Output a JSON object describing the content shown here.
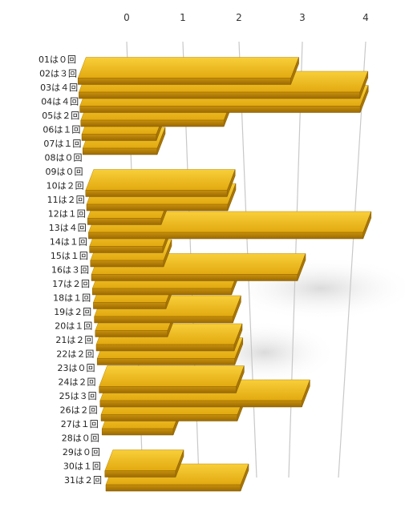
{
  "chart_data": {
    "type": "bar",
    "orientation": "horizontal",
    "style": "3d",
    "title": "",
    "xlabel": "",
    "ylabel": "",
    "xlim": [
      0,
      4
    ],
    "x_ticks": [
      "0",
      "1",
      "2",
      "3",
      "4"
    ],
    "grid": true,
    "bar_color": "#E8B010",
    "categories": [
      "01は０回",
      "02は３回",
      "03は４回",
      "04は４回",
      "05は２回",
      "06は１回",
      "07は１回",
      "08は０回",
      "09は０回",
      "10は２回",
      "11は２回",
      "12は１回",
      "13は４回",
      "14は１回",
      "15は１回",
      "16は３回",
      "17は２回",
      "18は１回",
      "19は２回",
      "20は１回",
      "21は２回",
      "22は２回",
      "23は０回",
      "24は２回",
      "25は３回",
      "26は２回",
      "27は１回",
      "28は０回",
      "29は０回",
      "30は１回",
      "31は２回"
    ],
    "values": [
      0,
      3,
      4,
      4,
      2,
      1,
      1,
      0,
      0,
      2,
      2,
      1,
      4,
      1,
      1,
      3,
      2,
      1,
      2,
      1,
      2,
      2,
      0,
      2,
      3,
      2,
      1,
      0,
      0,
      1,
      2
    ]
  }
}
